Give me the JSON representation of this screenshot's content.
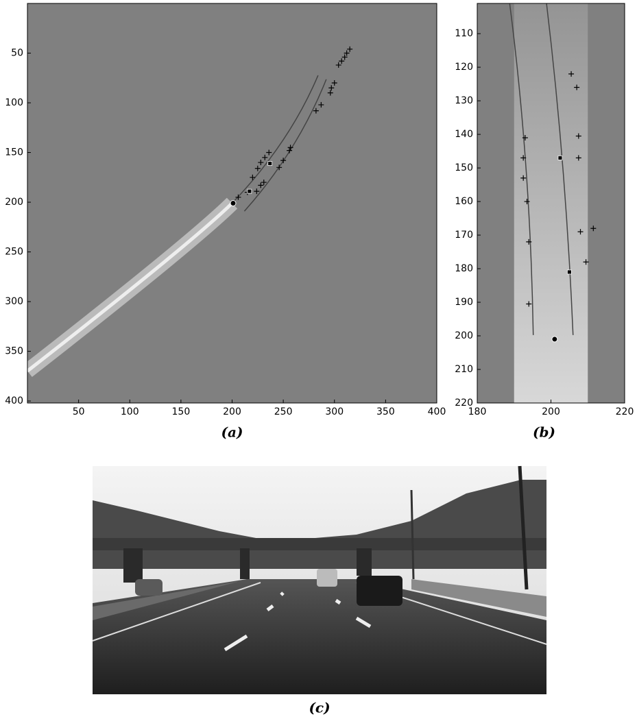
{
  "chart_data": [
    {
      "type": "image",
      "caption": "(a)",
      "xlim": [
        0,
        400
      ],
      "ylim": [
        0,
        402
      ],
      "y_reversed": true,
      "xticks": [
        50,
        100,
        150,
        200,
        250,
        300,
        350,
        400
      ],
      "yticks": [
        50,
        100,
        150,
        200,
        250,
        300,
        350,
        400
      ],
      "dots": [
        [
          201,
          201
        ]
      ],
      "squares": [
        [
          217,
          189
        ],
        [
          237,
          161
        ]
      ],
      "crosses": [
        [
          315,
          46
        ],
        [
          312,
          50
        ],
        [
          310,
          54
        ],
        [
          307,
          58
        ],
        [
          304,
          62
        ],
        [
          300,
          80
        ],
        [
          297,
          85
        ],
        [
          296,
          90
        ],
        [
          287,
          102
        ],
        [
          282,
          108
        ],
        [
          257,
          145
        ],
        [
          256,
          148
        ],
        [
          250,
          158
        ],
        [
          246,
          165
        ],
        [
          236,
          150
        ],
        [
          232,
          155
        ],
        [
          228,
          160
        ],
        [
          225,
          166
        ],
        [
          220,
          175
        ],
        [
          231,
          180
        ],
        [
          228,
          183
        ],
        [
          224,
          189
        ],
        [
          215,
          190
        ],
        [
          206,
          195
        ]
      ]
    },
    {
      "type": "image",
      "caption": "(b)",
      "xlim": [
        180,
        220
      ],
      "ylim": [
        101,
        220
      ],
      "y_reversed": true,
      "xticks": [
        180,
        200,
        220
      ],
      "yticks": [
        110,
        120,
        130,
        140,
        150,
        160,
        170,
        180,
        190,
        200,
        210,
        220
      ],
      "dots": [
        [
          201,
          201
        ]
      ],
      "squares": [
        [
          202.5,
          147
        ],
        [
          205,
          181
        ]
      ],
      "crosses": [
        [
          205.5,
          122
        ],
        [
          207,
          126
        ],
        [
          207.5,
          140.5
        ],
        [
          207.5,
          147
        ],
        [
          193,
          141
        ],
        [
          192.5,
          147
        ],
        [
          192.5,
          153
        ],
        [
          193.5,
          160
        ],
        [
          211.5,
          168
        ],
        [
          209.5,
          178
        ],
        [
          194,
          172
        ],
        [
          194,
          190.5
        ],
        [
          208,
          169
        ]
      ]
    }
  ],
  "photo": {
    "caption": "(c)"
  }
}
